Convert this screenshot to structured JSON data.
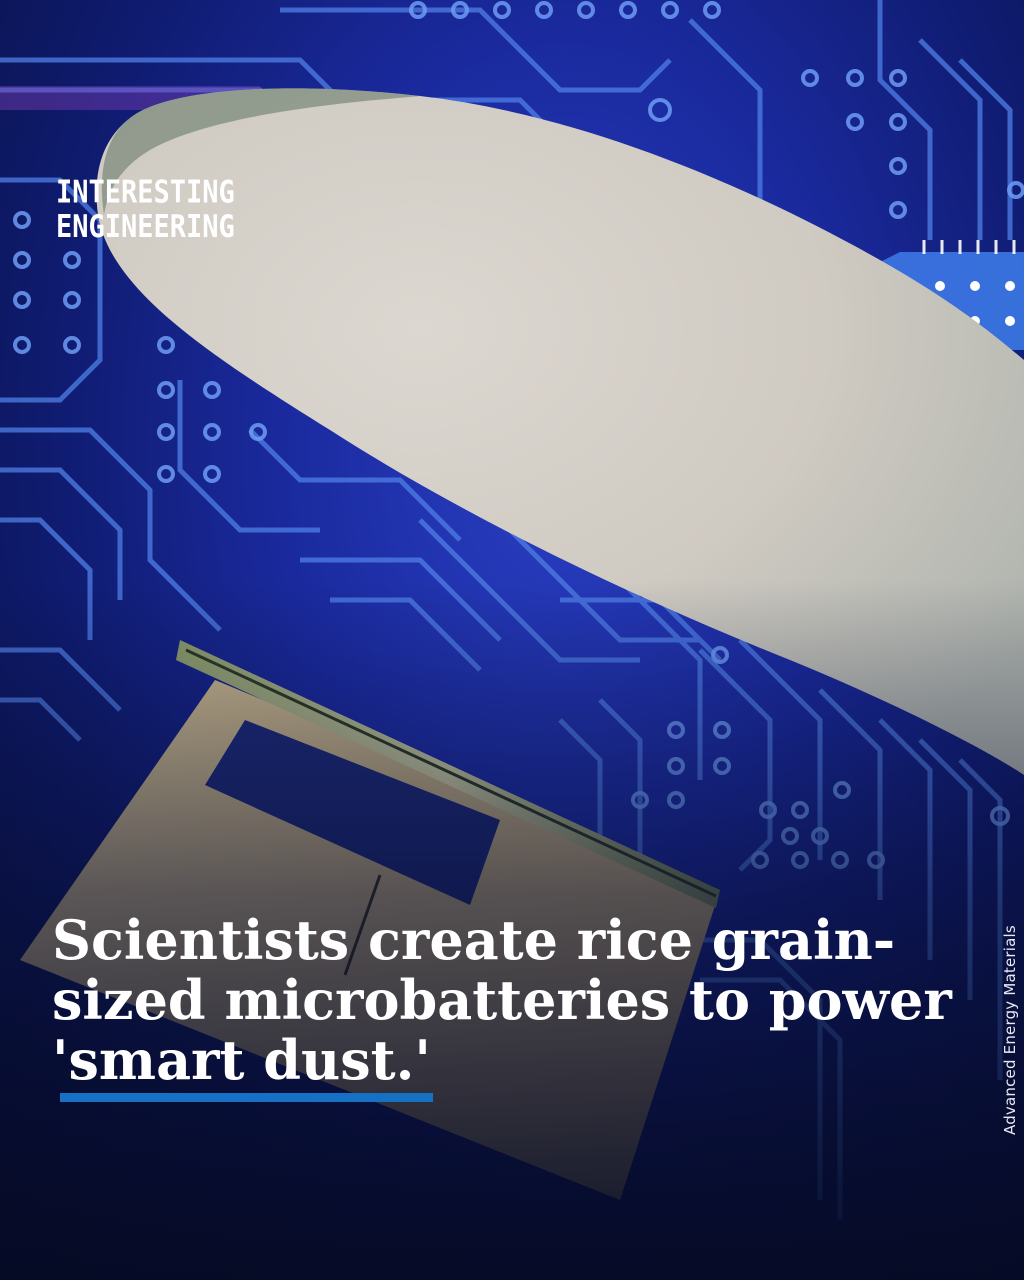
{
  "brand": {
    "line1": "INTERESTING",
    "line2": "ENGINEERING"
  },
  "headline": {
    "line1": "Scientists create rice grain-",
    "line2": "sized microbatteries to power",
    "line3": "'smart dust.'"
  },
  "credit": "Advanced Energy Materials",
  "colors": {
    "background": "#1a2a9e",
    "circuit": "#5b8df0",
    "highlight_underline": "#1670c4",
    "text": "#ffffff"
  }
}
